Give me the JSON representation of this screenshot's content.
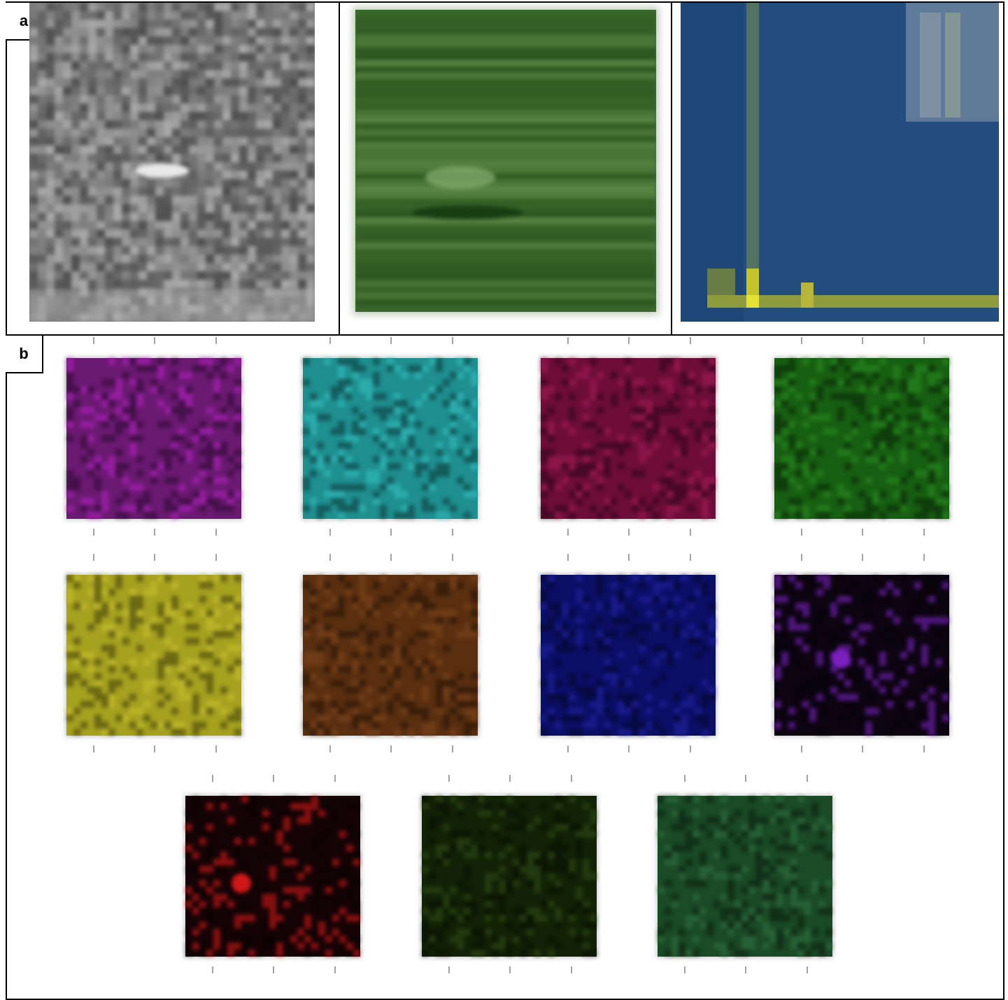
{
  "panel_labels": {
    "a": "a",
    "b": "b"
  },
  "row_a": [
    {
      "id": "grayscale-image",
      "base": "#7d7d7d"
    },
    {
      "id": "green-image",
      "base": "#3f6d2e"
    },
    {
      "id": "blue-matrix-image",
      "base": "#224a7a",
      "accent": "#d8d83a"
    }
  ],
  "row_b_tiles": [
    {
      "id": "magenta-tile",
      "color": "#6b1a72",
      "light": "#b020c0"
    },
    {
      "id": "cyan-tile",
      "color": "#1f8f90",
      "light": "#34c0c0"
    },
    {
      "id": "crimson-tile",
      "color": "#6e0d3a",
      "light": "#a01a55"
    },
    {
      "id": "green-tile",
      "color": "#175f12",
      "light": "#2a8a20"
    },
    {
      "id": "yellow-tile",
      "color": "#a6a11f",
      "light": "#c8c030"
    },
    {
      "id": "brown-tile",
      "color": "#5a2f10",
      "light": "#7d451b"
    },
    {
      "id": "navy-tile",
      "color": "#0c0f66",
      "light": "#1f22a0"
    },
    {
      "id": "dark-violet-tile",
      "color": "#0d0512",
      "light": "#7a20c0"
    },
    {
      "id": "dark-red-tile",
      "color": "#150406",
      "light": "#d01818"
    },
    {
      "id": "dark-olive-tile",
      "color": "#122206",
      "light": "#2e4a16"
    },
    {
      "id": "forest-tile",
      "color": "#1a4a26",
      "light": "#2f7040"
    }
  ]
}
